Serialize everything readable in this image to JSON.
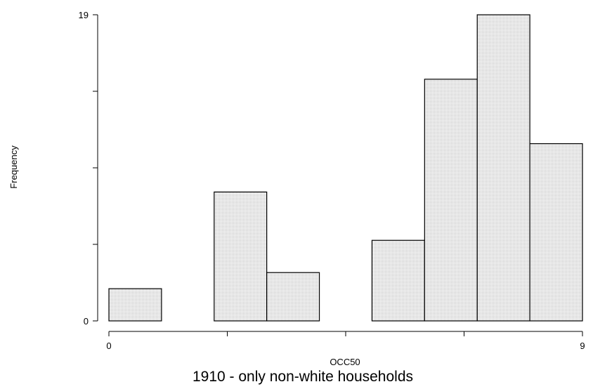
{
  "chart_data": {
    "type": "bar",
    "title": "1910 - only non-white households",
    "xlabel": "OCC50",
    "ylabel": "Frequency",
    "xlim": [
      0,
      9
    ],
    "ylim": [
      0,
      19
    ],
    "x_ticks": [
      0,
      2.25,
      4.5,
      6.75,
      9
    ],
    "x_tick_labels": [
      "0",
      "",
      "",
      "",
      "9"
    ],
    "y_ticks": [
      0,
      4.75,
      9.5,
      14.25,
      19
    ],
    "y_tick_labels": [
      "0",
      "",
      "",
      "",
      "19"
    ],
    "bin_width": 1,
    "bins": [
      {
        "x0": 0,
        "x1": 1,
        "value": 2
      },
      {
        "x0": 2,
        "x1": 3,
        "value": 8
      },
      {
        "x0": 3,
        "x1": 4,
        "value": 3
      },
      {
        "x0": 5,
        "x1": 6,
        "value": 5
      },
      {
        "x0": 6,
        "x1": 7,
        "value": 15
      },
      {
        "x0": 7,
        "x1": 8,
        "value": 19
      },
      {
        "x0": 8,
        "x1": 9,
        "value": 11
      }
    ],
    "grid": false,
    "legend": "none"
  }
}
